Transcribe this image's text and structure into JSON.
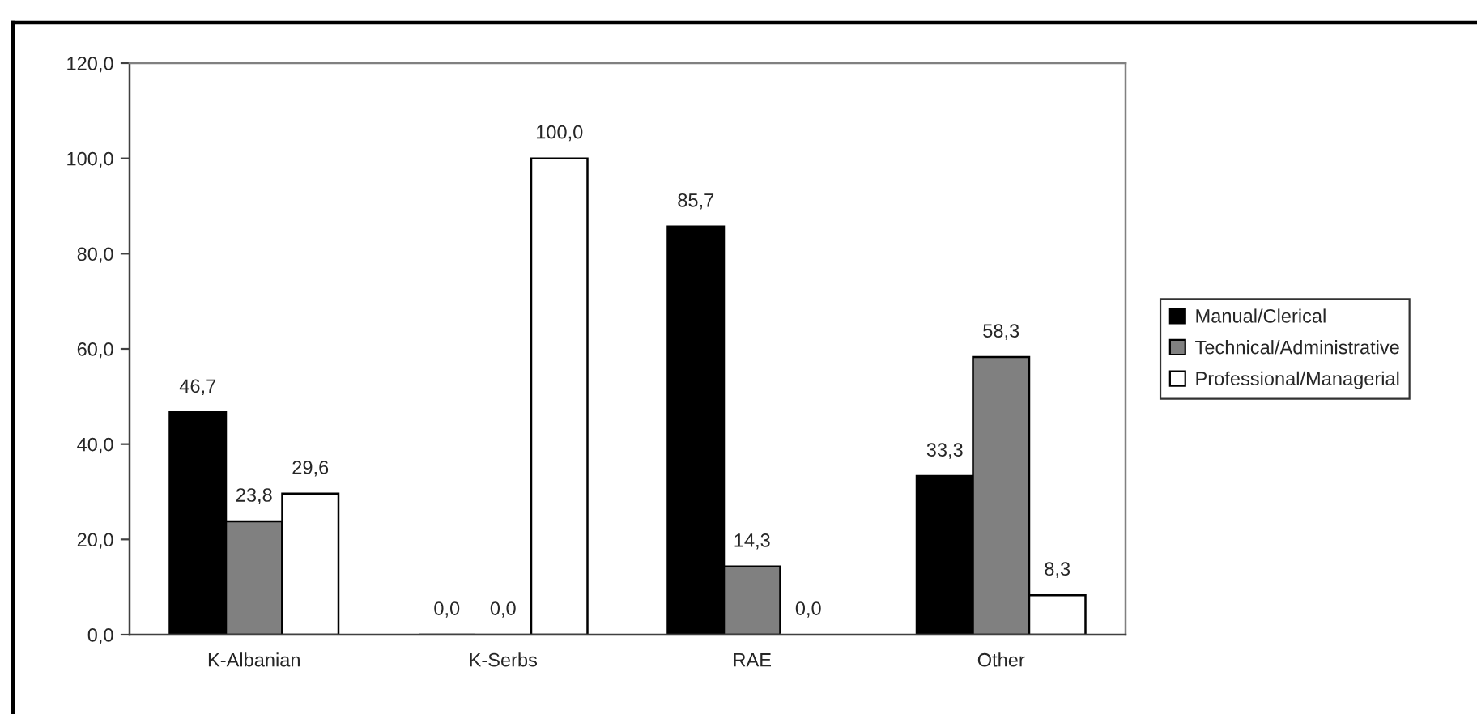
{
  "chart_data": {
    "type": "bar",
    "categories": [
      "K-Albanian",
      "K-Serbs",
      "RAE",
      "Other"
    ],
    "series": [
      {
        "name": "Manual/Clerical",
        "color": "#000000",
        "values": [
          46.7,
          0.0,
          85.7,
          33.3
        ],
        "value_labels": [
          "46,7",
          "0,0",
          "85,7",
          "33,3"
        ]
      },
      {
        "name": "Technical/Administrative",
        "color": "#808080",
        "values": [
          23.8,
          0.0,
          14.3,
          58.3
        ],
        "value_labels": [
          "23,8",
          "0,0",
          "14,3",
          "58,3"
        ]
      },
      {
        "name": "Professional/Managerial",
        "color": "#ffffff",
        "values": [
          29.6,
          100.0,
          0.0,
          8.3
        ],
        "value_labels": [
          "29,6",
          "100,0",
          "0,0",
          "8,3"
        ]
      }
    ],
    "ylim": [
      0,
      120
    ],
    "yticks": [
      {
        "value": 0,
        "label": "0,0"
      },
      {
        "value": 20,
        "label": "20,0"
      },
      {
        "value": 40,
        "label": "40,0"
      },
      {
        "value": 60,
        "label": "60,0"
      },
      {
        "value": 80,
        "label": "80,0"
      },
      {
        "value": 100,
        "label": "100,0"
      },
      {
        "value": 120,
        "label": "120,0"
      }
    ],
    "grid": false,
    "legend": "right"
  }
}
